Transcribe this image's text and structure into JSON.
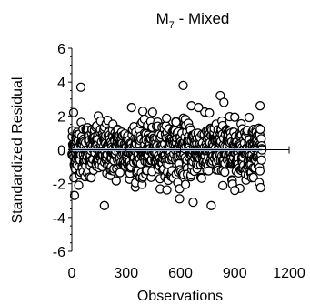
{
  "chart_data": {
    "type": "scatter",
    "title": "M",
    "title_subscript": "7",
    "title_suffix": " - Mixed",
    "xlabel": "Observations",
    "ylabel": "Standardized Residual",
    "xlim": [
      0,
      1200
    ],
    "ylim": [
      -6,
      6
    ],
    "x_ticks": [
      0,
      300,
      600,
      900,
      1200
    ],
    "y_ticks": [
      6,
      4,
      2,
      0,
      -2,
      -4,
      -6
    ],
    "grid": false,
    "legend": "none",
    "marker": "open-circle",
    "reference_line": {
      "y": 0,
      "color": "#9dc3e6"
    },
    "series": [
      {
        "n_observations": 1050,
        "notable_points": [
          {
            "x": 50,
            "y": 3.7
          },
          {
            "x": 615,
            "y": 3.8
          },
          {
            "x": 820,
            "y": 3.2
          },
          {
            "x": 840,
            "y": 2.8
          },
          {
            "x": 10,
            "y": 2.2
          },
          {
            "x": 660,
            "y": 2.6
          },
          {
            "x": 700,
            "y": 2.5
          },
          {
            "x": 1040,
            "y": 2.6
          },
          {
            "x": 330,
            "y": 2.5
          },
          {
            "x": 15,
            "y": -2.7
          },
          {
            "x": 180,
            "y": -3.3
          },
          {
            "x": 595,
            "y": -2.9
          },
          {
            "x": 670,
            "y": -3.1
          },
          {
            "x": 770,
            "y": -3.3
          },
          {
            "x": 900,
            "y": -2.4
          }
        ]
      }
    ]
  }
}
